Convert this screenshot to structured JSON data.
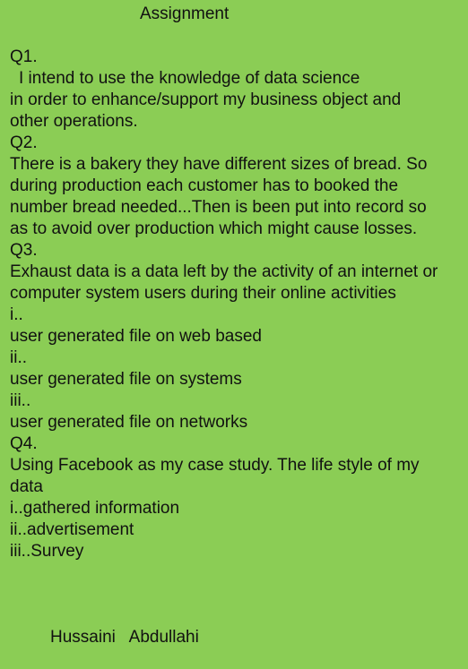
{
  "document": {
    "title": "Assignment",
    "lines": [
      "Q1.",
      "I intend to use the knowledge of data science",
      "in order to enhance/support my business object and",
      "other operations.",
      "Q2.",
      "There is a bakery they have different sizes of bread. So",
      "during production each customer has to booked the",
      "number bread needed...Then is been put into record so",
      "as to avoid over production which might cause losses.",
      "Q3.",
      "Exhaust data is a data left by the activity of an internet or",
      "computer system users during their online activities",
      "i..",
      "user generated file on web based",
      "ii..",
      "user generated file on systems",
      "iii..",
      "user generated file on networks",
      "Q4.",
      "Using Facebook as my case study. The life style of my",
      "data",
      "i..gathered information",
      "ii..advertisement",
      "iii..Survey"
    ],
    "signature": "Hussaini   Abdullahi"
  }
}
